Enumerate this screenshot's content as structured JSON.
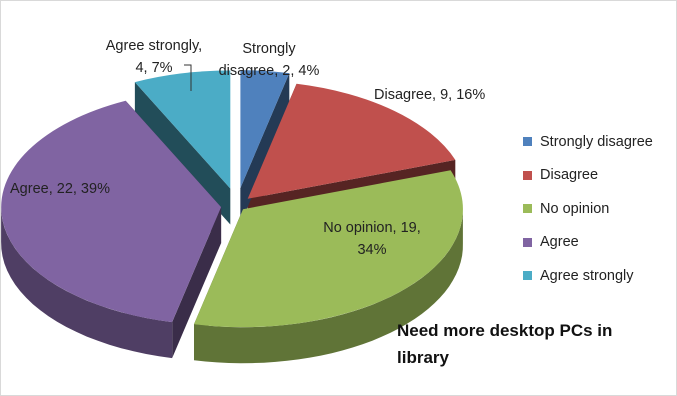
{
  "chart_data": {
    "type": "pie",
    "style": "3d-exploded",
    "title": "Need more desktop PCs in library",
    "legend_position": "right",
    "categories": [
      "Strongly disagree",
      "Disagree",
      "No opinion",
      "Agree",
      "Agree strongly"
    ],
    "values": [
      2,
      9,
      19,
      22,
      4
    ],
    "percentages": [
      4,
      16,
      34,
      39,
      7
    ],
    "data_labels": [
      "Strongly disagree, 2, 4%",
      "Disagree, 9, 16%",
      "No opinion, 19, 34%",
      "Agree, 22, 39%",
      "Agree strongly, 4, 7%"
    ],
    "label_lines": [
      [
        "Strongly",
        "disagree, 2, 4%"
      ],
      [
        "Disagree, 9, 16%"
      ],
      [
        "No opinion, 19,",
        "34%"
      ],
      [
        "Agree, 22, 39%"
      ],
      [
        "Agree strongly,",
        "4, 7%"
      ]
    ],
    "colors": [
      "#4F81BD",
      "#C0504D",
      "#9BBB59",
      "#8064A2",
      "#4BACC6"
    ]
  }
}
